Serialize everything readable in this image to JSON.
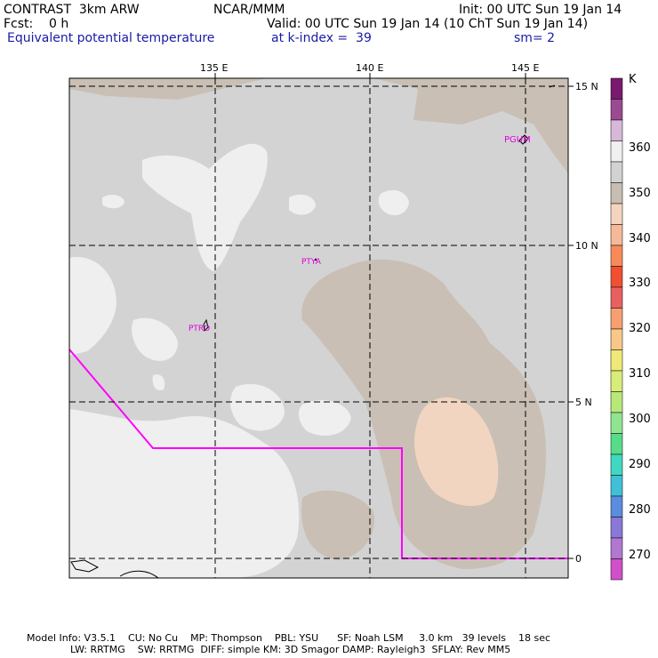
{
  "header": {
    "line1_left": "CONTRAST  3km ARW",
    "line1_center": "NCAR/MMM",
    "line1_right": "Init: 00 UTC Sun 19 Jan 14",
    "line2_left": "Fcst:    0 h",
    "line2_right": "Valid: 00 UTC Sun 19 Jan 14 (10 ChT Sun 19 Jan 14)",
    "line3_left": "Equivalent potential temperature",
    "line3_center": "at k-index =  39",
    "line3_right": "sm= 2"
  },
  "axes": {
    "lon_labels": [
      "135 E",
      "140 E",
      "145 E"
    ],
    "lat_labels": [
      "15 N",
      "10 N",
      "5 N",
      "0"
    ]
  },
  "stations": [
    "PGUM",
    "PTYA",
    "PTRO"
  ],
  "colorbar": {
    "unit": "K",
    "labels": [
      "360",
      "350",
      "340",
      "330",
      "320",
      "310",
      "300",
      "290",
      "280",
      "270"
    ],
    "colors": [
      "#7a1a6e",
      "#9a4a90",
      "#d8b8d8",
      "#f0f0f0",
      "#d2d2d2",
      "#c8bdb2",
      "#f4d4be",
      "#f6b898",
      "#f88a5a",
      "#f05030",
      "#e86060",
      "#f6a070",
      "#f8c888",
      "#f0e878",
      "#d8ec78",
      "#b8e878",
      "#90e490",
      "#58dc8a",
      "#40d8c0",
      "#40c0d8",
      "#5a8ce0",
      "#8a78d8",
      "#b078d0",
      "#d050c8"
    ]
  },
  "footer": {
    "line1": "Model Info: V3.5.1    CU: No Cu    MP: Thompson    PBL: YSU      SF: Noah LSM     3.0 km   39 levels    18 sec",
    "line2": "              LW: RRTMG    SW: RRTMG  DIFF: simple KM: 3D Smagor DAMP: Rayleigh3  SFLAY: Rev MM5"
  }
}
